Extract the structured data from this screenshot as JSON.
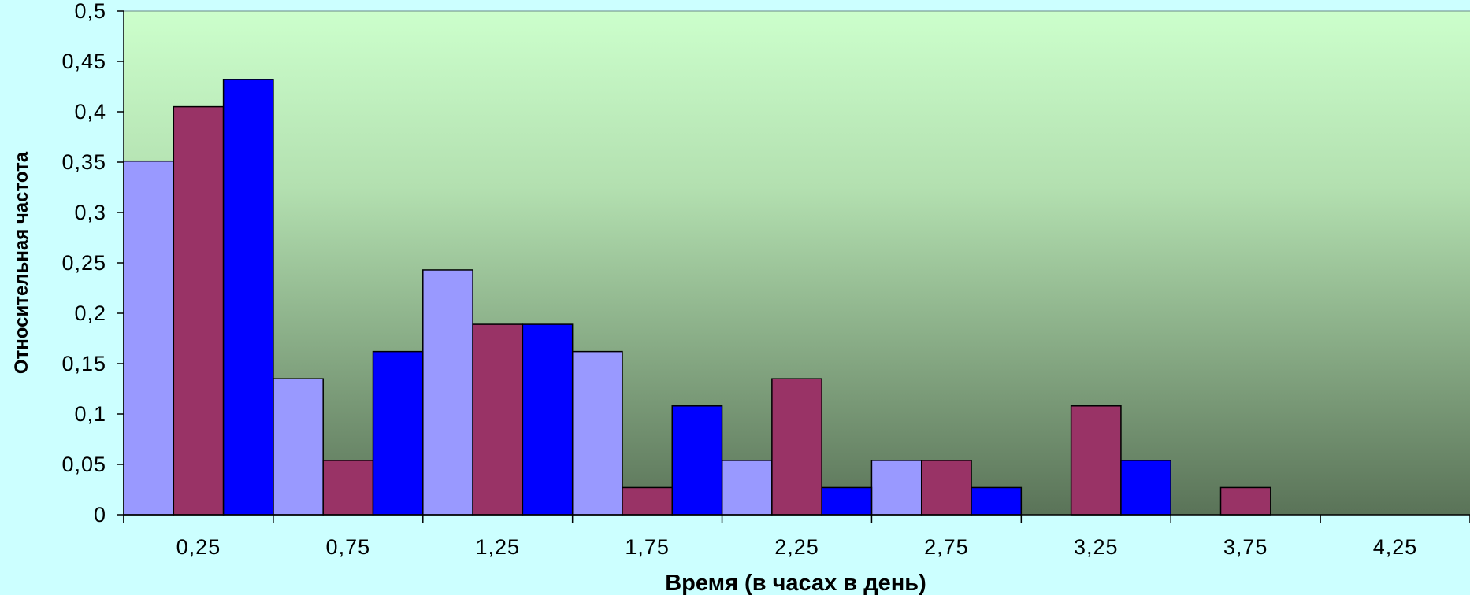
{
  "chart_data": {
    "type": "bar",
    "title": "",
    "xlabel": "Время (в часах в день)",
    "ylabel": "Относительная частота",
    "ylim": [
      0,
      0.5
    ],
    "yticks": [
      "0",
      "0,05",
      "0,1",
      "0,15",
      "0,2",
      "0,25",
      "0,3",
      "0,35",
      "0,4",
      "0,45",
      "0,5"
    ],
    "categories": [
      "0,25",
      "0,75",
      "1,25",
      "1,75",
      "2,25",
      "2,75",
      "3,25",
      "3,75",
      "4,25"
    ],
    "series": [
      {
        "color": "#9999ff",
        "values": [
          0.351,
          0.135,
          0.243,
          0.162,
          0.054,
          0.054,
          0,
          0,
          0
        ]
      },
      {
        "color": "#993366",
        "values": [
          0.405,
          0.054,
          0.189,
          0.027,
          0.135,
          0.054,
          0.108,
          0.027,
          0
        ]
      },
      {
        "color": "#0000ff",
        "values": [
          0.432,
          0.162,
          0.189,
          0.108,
          0.027,
          0.027,
          0.054,
          0,
          0
        ]
      }
    ],
    "grid": false,
    "legend": "none",
    "plot_background": {
      "top": "#ccffcc",
      "bottom": "#5a7358"
    },
    "page_background": "#ccffff"
  }
}
